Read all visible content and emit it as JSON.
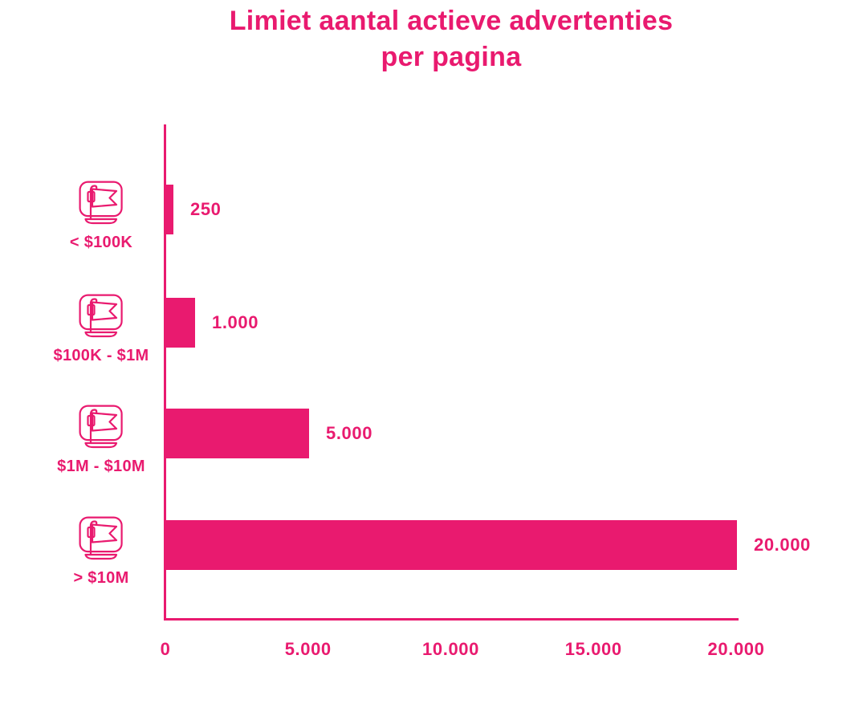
{
  "accent_color": "#E91A6F",
  "background_color": "#FFFFFF",
  "title": {
    "line1": "Limiet aantal actieve advertenties",
    "line2": "per pagina"
  },
  "chart_data": {
    "type": "bar",
    "orientation": "horizontal",
    "title": "Limiet aantal actieve advertenties per pagina",
    "categories": [
      "< $100K",
      "$100K - $1M",
      "$1M - $10M",
      "> $10M"
    ],
    "values": [
      250,
      1000,
      5000,
      20000
    ],
    "value_labels": [
      "250",
      "1.000",
      "5.000",
      "20.000"
    ],
    "x_ticks": [
      0,
      5000,
      10000,
      15000,
      20000
    ],
    "x_tick_labels": [
      "0",
      "5.000",
      "10.000",
      "15.000",
      "20.000"
    ],
    "xlim": [
      0,
      20000
    ],
    "xlabel": "",
    "ylabel": "",
    "grid": false,
    "legend_position": "none",
    "bar_color": "#E91A6F",
    "axis_color": "#E91A6F",
    "category_icon": "flag-sign-icon"
  }
}
